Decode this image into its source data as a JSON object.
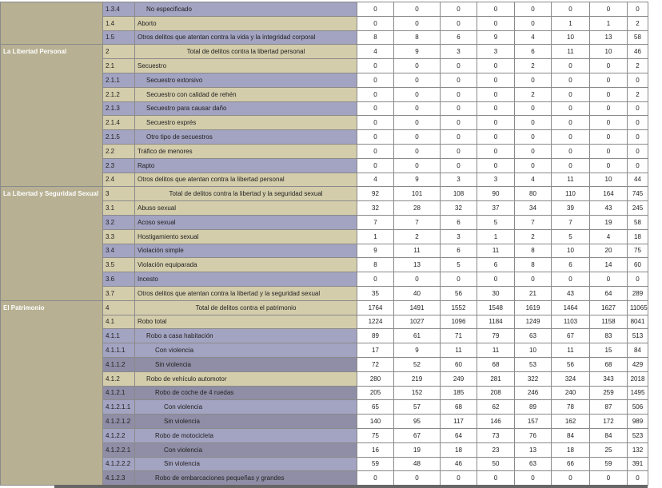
{
  "groups": [
    {
      "rows": [
        {
          "code": "1.3.4",
          "label": "No especificado",
          "values": [
            0,
            0,
            0,
            0,
            0,
            0,
            0,
            0
          ]
        },
        {
          "code": "1.4",
          "label": "Aborto",
          "values": [
            0,
            0,
            0,
            0,
            0,
            1,
            1,
            2
          ]
        },
        {
          "code": "1.5",
          "label": "Otros delitos que atentan contra la vida y la integridad corporal",
          "values": [
            8,
            8,
            6,
            9,
            4,
            10,
            13,
            58
          ]
        }
      ]
    },
    {
      "label": "La Libertad Personal",
      "rows": [
        {
          "code": "2",
          "label": "Total de delitos contra la libertad personal",
          "values": [
            4,
            9,
            3,
            3,
            6,
            11,
            10,
            46
          ]
        },
        {
          "code": "2.1",
          "label": "Secuestro",
          "values": [
            0,
            0,
            0,
            0,
            2,
            0,
            0,
            2
          ]
        },
        {
          "code": "2.1.1",
          "label": "Secuestro extorsivo",
          "values": [
            0,
            0,
            0,
            0,
            0,
            0,
            0,
            0
          ]
        },
        {
          "code": "2.1.2",
          "label": "Secuestro con calidad de rehén",
          "values": [
            0,
            0,
            0,
            0,
            2,
            0,
            0,
            2
          ]
        },
        {
          "code": "2.1.3",
          "label": "Secuestro para causar daño",
          "values": [
            0,
            0,
            0,
            0,
            0,
            0,
            0,
            0
          ]
        },
        {
          "code": "2.1.4",
          "label": "Secuestro exprés",
          "values": [
            0,
            0,
            0,
            0,
            0,
            0,
            0,
            0
          ]
        },
        {
          "code": "2.1.5",
          "label": "Otro tipo de secuestros",
          "values": [
            0,
            0,
            0,
            0,
            0,
            0,
            0,
            0
          ]
        },
        {
          "code": "2.2",
          "label": "Tráfico de menores",
          "values": [
            0,
            0,
            0,
            0,
            0,
            0,
            0,
            0
          ]
        },
        {
          "code": "2.3",
          "label": "Rapto",
          "values": [
            0,
            0,
            0,
            0,
            0,
            0,
            0,
            0
          ]
        },
        {
          "code": "2.4",
          "label": "Otros delitos que atentan contra la libertad personal",
          "values": [
            4,
            9,
            3,
            3,
            4,
            11,
            10,
            44
          ]
        }
      ]
    },
    {
      "label": "La Libertad y Seguridad Sexual",
      "rows": [
        {
          "code": "3",
          "label": "Total de delitos contra la libertad y la seguridad sexual",
          "values": [
            92,
            101,
            108,
            90,
            80,
            110,
            164,
            745
          ]
        },
        {
          "code": "3.1",
          "label": "Abuso sexual",
          "values": [
            32,
            28,
            32,
            37,
            34,
            39,
            43,
            245
          ]
        },
        {
          "code": "3.2",
          "label": "Acoso sexual",
          "values": [
            7,
            7,
            6,
            5,
            7,
            7,
            19,
            58
          ]
        },
        {
          "code": "3.3",
          "label": "Hostigamiento sexual",
          "values": [
            1,
            2,
            3,
            1,
            2,
            5,
            4,
            18
          ]
        },
        {
          "code": "3.4",
          "label": "Violación simple",
          "values": [
            9,
            11,
            6,
            11,
            8,
            10,
            20,
            75
          ]
        },
        {
          "code": "3.5",
          "label": "Violación equiparada",
          "values": [
            8,
            13,
            5,
            6,
            8,
            6,
            14,
            60
          ]
        },
        {
          "code": "3.6",
          "label": "Incesto",
          "values": [
            0,
            0,
            0,
            0,
            0,
            0,
            0,
            0
          ]
        },
        {
          "code": "3.7",
          "label": "Otros delitos que atentan contra la libertad y la seguridad sexual",
          "values": [
            35,
            40,
            56,
            30,
            21,
            43,
            64,
            289
          ]
        }
      ]
    },
    {
      "label": "El Patrimonio",
      "rows": [
        {
          "code": "4",
          "label": "Total de delitos contra el patrimonio",
          "values": [
            1764,
            1491,
            1552,
            1548,
            1619,
            1464,
            1627,
            11065
          ]
        },
        {
          "code": "4.1",
          "label": "Robo total",
          "values": [
            1224,
            1027,
            1096,
            1184,
            1249,
            1103,
            1158,
            8041
          ]
        },
        {
          "code": "4.1.1",
          "label": "Robo a casa habitación",
          "values": [
            89,
            61,
            71,
            79,
            63,
            67,
            83,
            513
          ]
        },
        {
          "code": "4.1.1.1",
          "label": "Con violencia",
          "values": [
            17,
            9,
            11,
            11,
            10,
            11,
            15,
            84
          ]
        },
        {
          "code": "4.1.1.2",
          "label": "Sin violencia",
          "values": [
            72,
            52,
            60,
            68,
            53,
            56,
            68,
            429
          ]
        },
        {
          "code": "4.1.2",
          "label": "Robo de vehículo automotor",
          "values": [
            280,
            219,
            249,
            281,
            322,
            324,
            343,
            2018
          ]
        },
        {
          "code": "4.1.2.1",
          "label": "Robo de coche de 4 ruedas",
          "values": [
            205,
            152,
            185,
            208,
            246,
            240,
            259,
            1495
          ]
        },
        {
          "code": "4.1.2.1.1",
          "label": "Con violencia",
          "values": [
            65,
            57,
            68,
            62,
            89,
            78,
            87,
            506
          ]
        },
        {
          "code": "4.1.2.1.2",
          "label": "Sin violencia",
          "values": [
            140,
            95,
            117,
            146,
            157,
            162,
            172,
            989
          ]
        },
        {
          "code": "4.1.2.2",
          "label": "Robo de motocicleta",
          "values": [
            75,
            67,
            64,
            73,
            76,
            84,
            84,
            523
          ]
        },
        {
          "code": "4.1.2.2.1",
          "label": "Con violencia",
          "values": [
            16,
            19,
            18,
            23,
            13,
            18,
            25,
            132
          ]
        },
        {
          "code": "4.1.2.2.2",
          "label": "Sin violencia",
          "values": [
            59,
            48,
            46,
            50,
            63,
            66,
            59,
            391
          ]
        },
        {
          "code": "4.1.2.3",
          "label": "Robo de embarcaciones pequeñas y grandes",
          "values": [
            0,
            0,
            0,
            0,
            0,
            0,
            0,
            0
          ]
        }
      ]
    }
  ]
}
